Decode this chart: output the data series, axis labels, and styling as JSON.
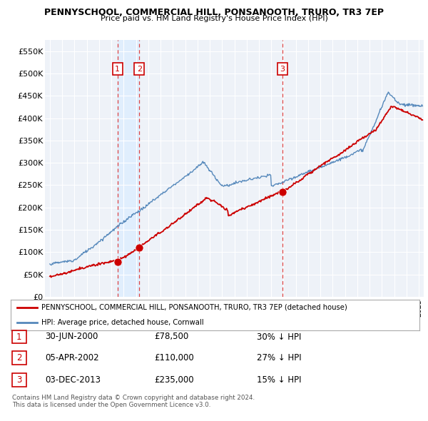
{
  "title": "PENNYSCHOOL, COMMERCIAL HILL, PONSANOOTH, TRURO, TR3 7EP",
  "subtitle": "Price paid vs. HM Land Registry's House Price Index (HPI)",
  "red_label": "PENNYSCHOOL, COMMERCIAL HILL, PONSANOOTH, TRURO, TR3 7EP (detached house)",
  "blue_label": "HPI: Average price, detached house, Cornwall",
  "footnote1": "Contains HM Land Registry data © Crown copyright and database right 2024.",
  "footnote2": "This data is licensed under the Open Government Licence v3.0.",
  "transactions": [
    {
      "num": 1,
      "date": "30-JUN-2000",
      "price": "£78,500",
      "pct": "30% ↓ HPI",
      "year": 2000.5
    },
    {
      "num": 2,
      "date": "05-APR-2002",
      "price": "£110,000",
      "pct": "27% ↓ HPI",
      "year": 2002.27
    },
    {
      "num": 3,
      "date": "03-DEC-2013",
      "price": "£235,000",
      "pct": "15% ↓ HPI",
      "year": 2013.92
    }
  ],
  "ylim": [
    0,
    575000
  ],
  "xlim_start": 1994.6,
  "xlim_end": 2025.4,
  "yticks": [
    0,
    50000,
    100000,
    150000,
    200000,
    250000,
    300000,
    350000,
    400000,
    450000,
    500000,
    550000
  ],
  "ytick_labels": [
    "£0",
    "£50K",
    "£100K",
    "£150K",
    "£200K",
    "£250K",
    "£300K",
    "£350K",
    "£400K",
    "£450K",
    "£500K",
    "£550K"
  ],
  "background_color": "#ffffff",
  "plot_bg_color": "#eef2f8",
  "grid_color": "#ffffff",
  "red_color": "#cc0000",
  "blue_color": "#5588bb",
  "marker_color": "#cc0000",
  "vline_color": "#dd4444",
  "shade_color": "#ddeeff"
}
